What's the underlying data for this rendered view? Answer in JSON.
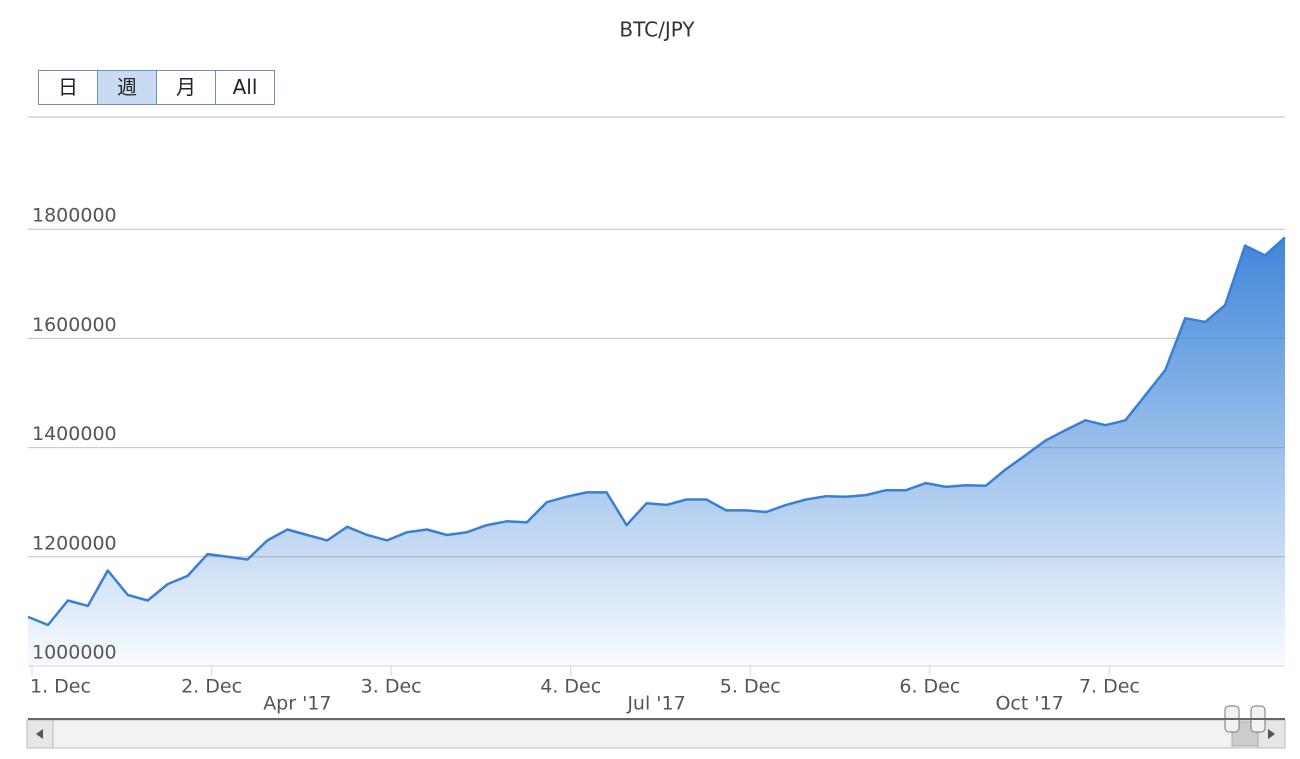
{
  "chart_data": {
    "type": "area",
    "title": "BTC/JPY",
    "x": [
      0,
      1,
      2,
      3,
      4,
      5,
      6,
      7,
      8,
      9,
      10,
      11,
      12,
      13,
      14,
      15,
      16,
      17,
      18,
      19,
      20,
      21,
      22,
      23,
      24,
      25,
      26,
      27,
      28,
      29,
      30,
      31,
      32,
      33,
      34,
      35,
      36,
      37,
      38,
      39,
      40,
      41,
      42,
      43,
      44,
      45,
      46,
      47,
      48,
      49,
      50,
      51,
      52,
      53,
      54,
      55,
      56,
      57,
      58,
      59,
      60,
      61,
      62,
      63
    ],
    "series": [
      {
        "name": "BTC/JPY",
        "color": "#3a7fd5",
        "values": [
          1090000,
          1075000,
          1120000,
          1110000,
          1175000,
          1130000,
          1120000,
          1150000,
          1165000,
          1205000,
          1200000,
          1195000,
          1230000,
          1250000,
          1240000,
          1230000,
          1255000,
          1240000,
          1230000,
          1245000,
          1250000,
          1240000,
          1245000,
          1258000,
          1265000,
          1263000,
          1300000,
          1310000,
          1318000,
          1318000,
          1258000,
          1298000,
          1295000,
          1305000,
          1305000,
          1285000,
          1285000,
          1282000,
          1295000,
          1305000,
          1311000,
          1310000,
          1313000,
          1322000,
          1322000,
          1335000,
          1328000,
          1331000,
          1330000,
          1360000,
          1386000,
          1413000,
          1432000,
          1450000,
          1441000,
          1450000,
          1496000,
          1542000,
          1637000,
          1630000,
          1661000,
          1770000,
          1752000,
          1785000
        ]
      }
    ],
    "xlim": [
      0,
      63
    ],
    "xticks": [
      {
        "value": 0.2,
        "label": "1. Dec"
      },
      {
        "value": 9.2,
        "label": "2. Dec"
      },
      {
        "value": 18.2,
        "label": "3. Dec"
      },
      {
        "value": 27.2,
        "label": "4. Dec"
      },
      {
        "value": 36.2,
        "label": "5. Dec"
      },
      {
        "value": 45.2,
        "label": "6. Dec"
      },
      {
        "value": 54.2,
        "label": "7. Dec"
      }
    ],
    "period_ticks": [
      {
        "value": 13.5,
        "label": "Apr '17"
      },
      {
        "value": 31.5,
        "label": "Jul '17"
      },
      {
        "value": 50.2,
        "label": "Oct '17"
      }
    ],
    "ylim": [
      1000000,
      2000000
    ],
    "yticks": [
      1000000,
      1200000,
      1400000,
      1600000,
      1800000
    ],
    "grid": true
  },
  "range_selector": {
    "buttons": [
      "日",
      "週",
      "月",
      "All"
    ],
    "selected": 1
  }
}
